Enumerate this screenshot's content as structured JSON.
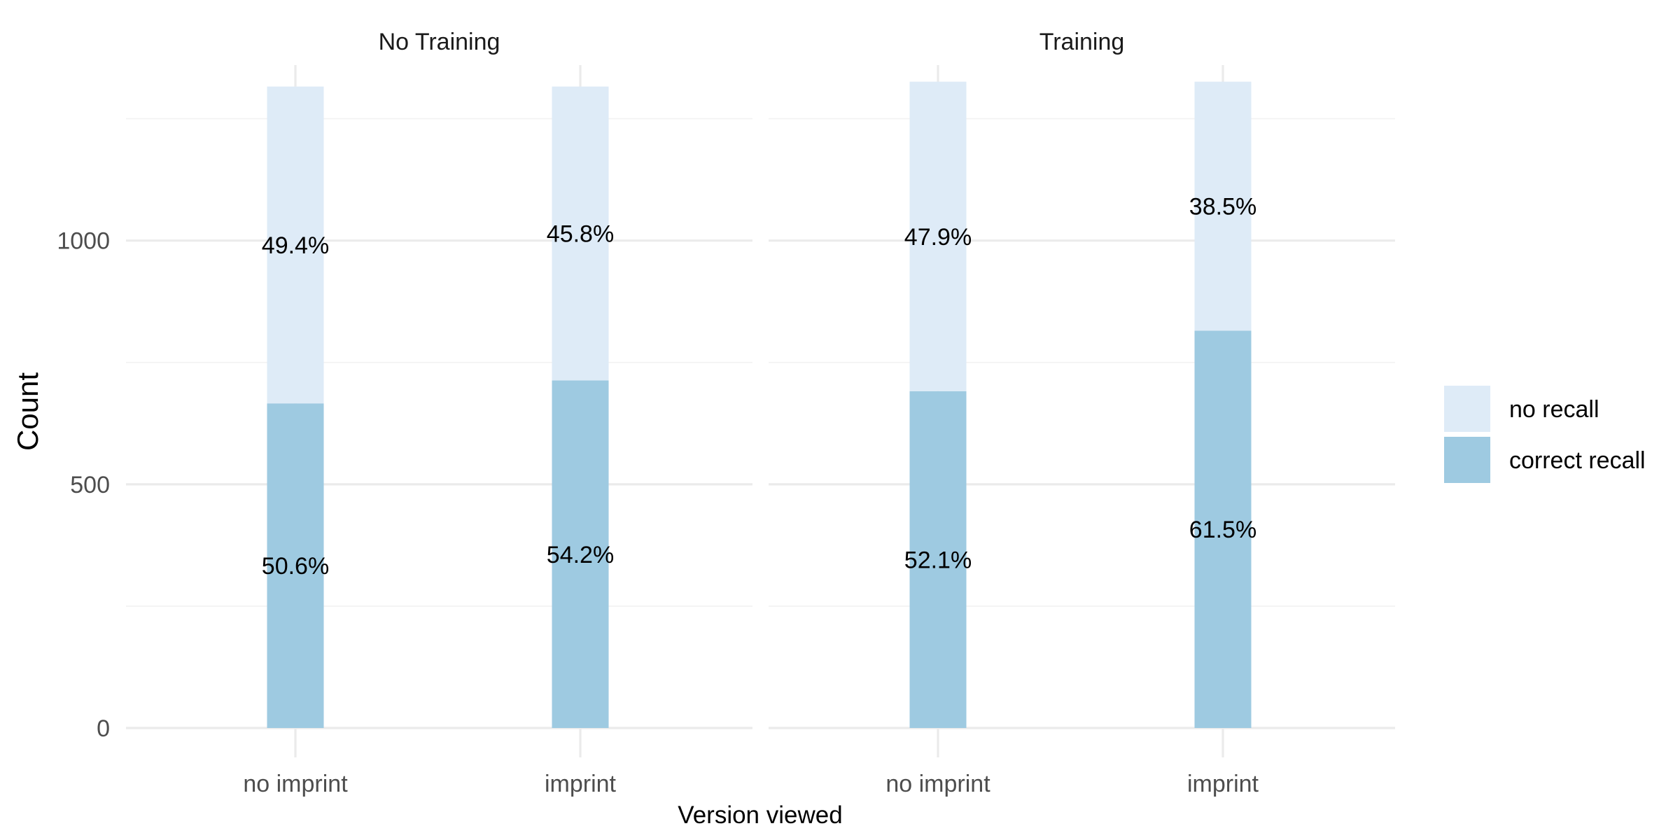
{
  "chart_data": {
    "type": "bar",
    "stacked": true,
    "faceted": true,
    "xlabel": "Version viewed",
    "ylabel": "Count",
    "ylim": [
      0,
      1360
    ],
    "y_ticks": [
      0,
      500,
      1000
    ],
    "y_tick_labels": [
      "0",
      "500",
      "1000"
    ],
    "categories": [
      "no imprint",
      "imprint"
    ],
    "legend": {
      "position": "right",
      "entries": [
        {
          "name": "no recall",
          "color": "#deebf7"
        },
        {
          "name": "correct recall",
          "color": "#9ecae1"
        }
      ]
    },
    "facets": [
      {
        "title": "No Training",
        "bars": [
          {
            "category": "no imprint",
            "total": 1316,
            "segments": [
              {
                "series": "correct recall",
                "value": 666,
                "label": "50.6%"
              },
              {
                "series": "no recall",
                "value": 650,
                "label": "49.4%"
              }
            ]
          },
          {
            "category": "imprint",
            "total": 1316,
            "segments": [
              {
                "series": "correct recall",
                "value": 713,
                "label": "54.2%"
              },
              {
                "series": "no recall",
                "value": 603,
                "label": "45.8%"
              }
            ]
          }
        ]
      },
      {
        "title": "Training",
        "bars": [
          {
            "category": "no imprint",
            "total": 1326,
            "segments": [
              {
                "series": "correct recall",
                "value": 691,
                "label": "52.1%"
              },
              {
                "series": "no recall",
                "value": 635,
                "label": "47.9%"
              }
            ]
          },
          {
            "category": "imprint",
            "total": 1326,
            "segments": [
              {
                "series": "correct recall",
                "value": 815,
                "label": "61.5%"
              },
              {
                "series": "no recall",
                "value": 511,
                "label": "38.5%"
              }
            ]
          }
        ]
      }
    ]
  }
}
